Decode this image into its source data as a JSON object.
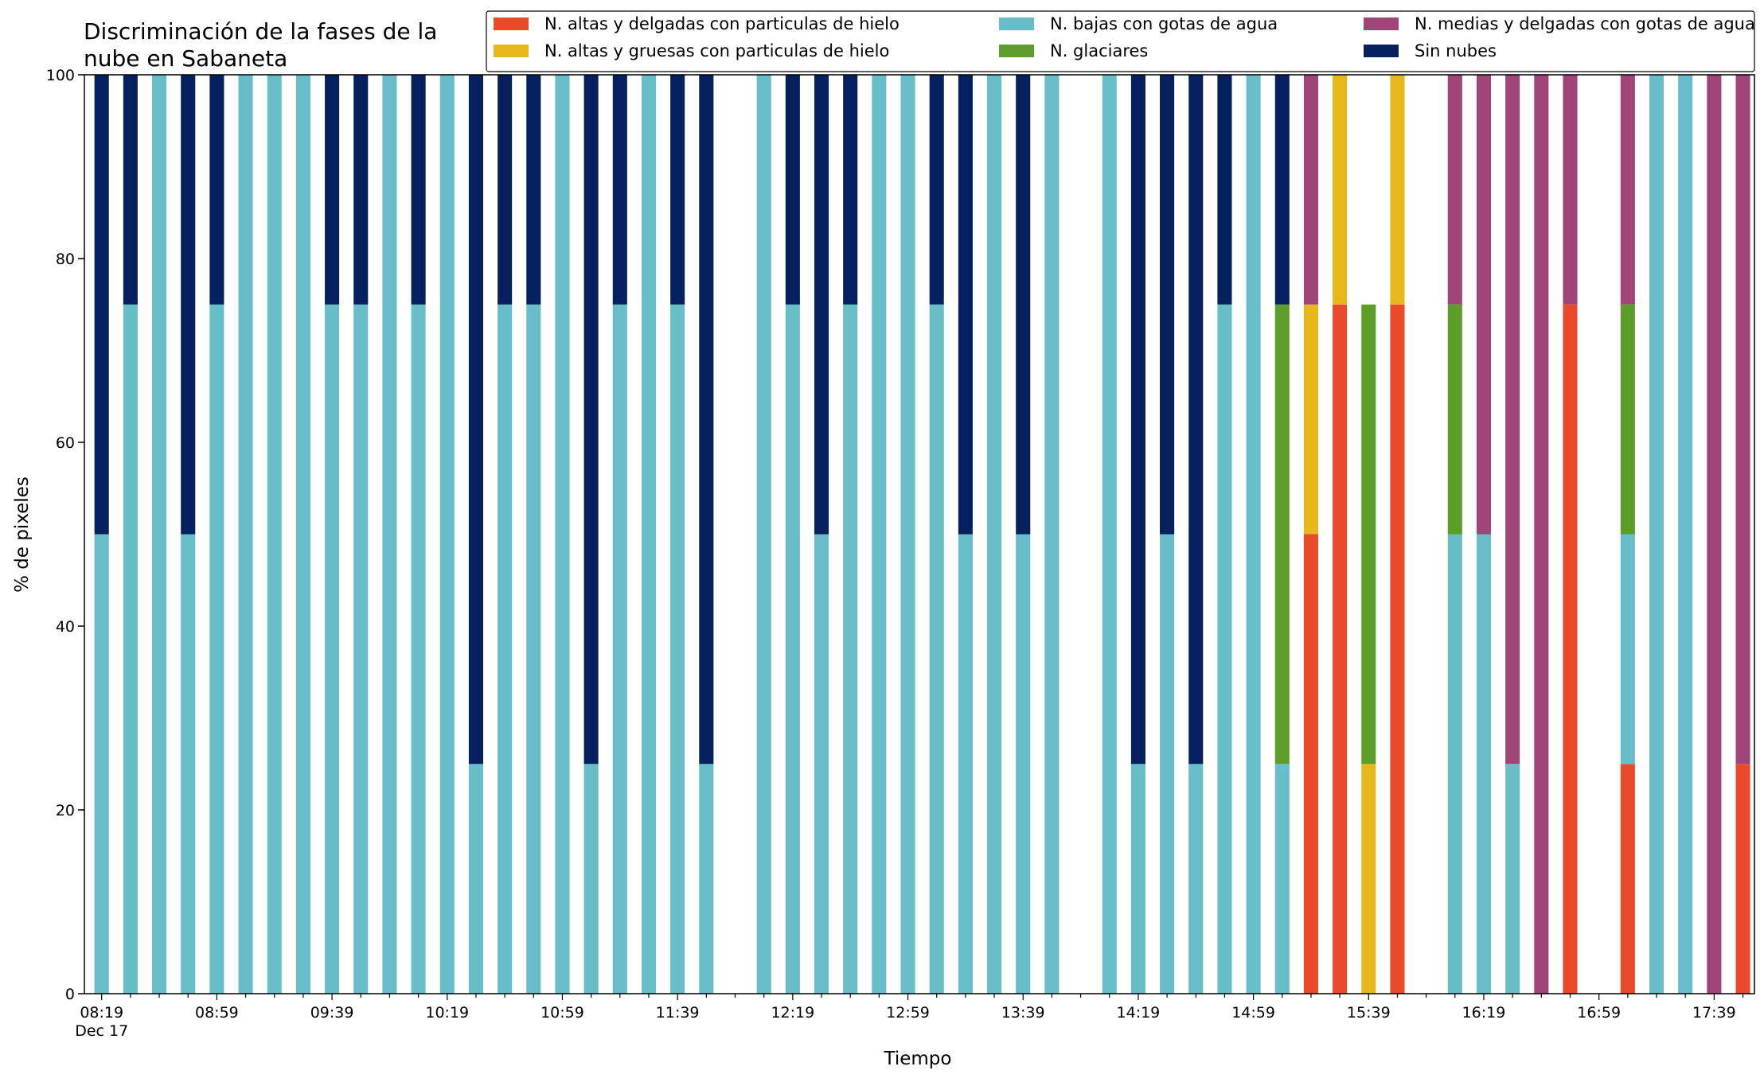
{
  "chart_data": {
    "type": "bar",
    "stacked": true,
    "title": [
      "Discriminación de la fases de la",
      "nube en Sabaneta"
    ],
    "xlabel": "Tiempo",
    "ylabel": "% de pixeles",
    "ylim": [
      0,
      100
    ],
    "yticks": [
      0,
      20,
      40,
      60,
      80,
      100
    ],
    "xlim": [
      "08:13",
      "17:53"
    ],
    "xtick_labels": [
      "08:19",
      "08:59",
      "09:39",
      "10:19",
      "10:59",
      "11:39",
      "12:19",
      "12:59",
      "13:39",
      "14:19",
      "14:59",
      "15:39",
      "16:19",
      "16:59",
      "17:39"
    ],
    "x_date_label": "Dec 17",
    "grid": false,
    "legend_position": "top-right",
    "legend_columns": 3,
    "categories": [
      "08:19",
      "08:29",
      "08:39",
      "08:49",
      "08:59",
      "09:09",
      "09:19",
      "09:29",
      "09:39",
      "09:49",
      "09:59",
      "10:09",
      "10:19",
      "10:29",
      "10:39",
      "10:49",
      "10:59",
      "11:09",
      "11:19",
      "11:29",
      "11:39",
      "11:49",
      "12:09",
      "12:19",
      "12:29",
      "12:39",
      "12:49",
      "12:59",
      "13:09",
      "13:19",
      "13:29",
      "13:39",
      "13:49",
      "14:09",
      "14:19",
      "14:29",
      "14:39",
      "14:49",
      "14:59",
      "15:09",
      "15:19",
      "15:29",
      "15:39",
      "15:49",
      "16:09",
      "16:19",
      "16:29",
      "16:39",
      "16:49",
      "17:09",
      "17:19",
      "17:29",
      "17:39",
      "17:49"
    ],
    "series": [
      {
        "name": "N. altas y delgadas con particulas de hielo",
        "color": "#e84a2a",
        "values": [
          0,
          0,
          0,
          0,
          0,
          0,
          0,
          0,
          0,
          0,
          0,
          0,
          0,
          0,
          0,
          0,
          0,
          0,
          0,
          0,
          0,
          0,
          0,
          0,
          0,
          0,
          0,
          0,
          0,
          0,
          0,
          0,
          0,
          0,
          0,
          0,
          0,
          0,
          0,
          0,
          50,
          75,
          0,
          75,
          0,
          0,
          0,
          0,
          75,
          25,
          0,
          0,
          0,
          25
        ]
      },
      {
        "name": "N. altas y gruesas con particulas de hielo",
        "color": "#e6b81c",
        "values": [
          0,
          0,
          0,
          0,
          0,
          0,
          0,
          0,
          0,
          0,
          0,
          0,
          0,
          0,
          0,
          0,
          0,
          0,
          0,
          0,
          0,
          0,
          0,
          0,
          0,
          0,
          0,
          0,
          0,
          0,
          0,
          0,
          0,
          0,
          0,
          0,
          0,
          0,
          0,
          0,
          25,
          25,
          25,
          25,
          0,
          0,
          0,
          0,
          0,
          0,
          0,
          0,
          0,
          0
        ]
      },
      {
        "name": "N. bajas con gotas de agua",
        "color": "#67bdc8",
        "values": [
          50,
          75,
          100,
          50,
          75,
          100,
          100,
          100,
          75,
          75,
          100,
          75,
          100,
          25,
          75,
          75,
          100,
          25,
          75,
          100,
          75,
          25,
          100,
          75,
          50,
          75,
          100,
          100,
          75,
          50,
          100,
          50,
          100,
          100,
          25,
          50,
          25,
          75,
          100,
          25,
          0,
          0,
          0,
          0,
          50,
          50,
          25,
          0,
          0,
          25,
          100,
          100,
          0,
          0
        ]
      },
      {
        "name": "N. glaciares",
        "color": "#5d9e2b",
        "values": [
          0,
          0,
          0,
          0,
          0,
          0,
          0,
          0,
          0,
          0,
          0,
          0,
          0,
          0,
          0,
          0,
          0,
          0,
          0,
          0,
          0,
          0,
          0,
          0,
          0,
          0,
          0,
          0,
          0,
          0,
          0,
          0,
          0,
          0,
          0,
          0,
          0,
          0,
          0,
          50,
          0,
          0,
          50,
          0,
          25,
          0,
          0,
          0,
          0,
          25,
          0,
          0,
          0,
          0
        ]
      },
      {
        "name": "N. medias y delgadas con gotas de agua",
        "color": "#9f4578",
        "values": [
          0,
          0,
          0,
          0,
          0,
          0,
          0,
          0,
          0,
          0,
          0,
          0,
          0,
          0,
          0,
          0,
          0,
          0,
          0,
          0,
          0,
          0,
          0,
          0,
          0,
          0,
          0,
          0,
          0,
          0,
          0,
          0,
          0,
          0,
          0,
          0,
          0,
          0,
          0,
          0,
          25,
          0,
          0,
          0,
          25,
          50,
          75,
          100,
          25,
          25,
          0,
          0,
          100,
          75
        ]
      },
      {
        "name": "Sin nubes",
        "color": "#04205e",
        "values": [
          50,
          25,
          0,
          50,
          25,
          0,
          0,
          0,
          25,
          25,
          0,
          25,
          0,
          75,
          25,
          25,
          0,
          75,
          25,
          0,
          25,
          75,
          0,
          25,
          50,
          25,
          0,
          0,
          25,
          50,
          0,
          50,
          0,
          0,
          75,
          50,
          75,
          25,
          0,
          25,
          0,
          0,
          0,
          0,
          0,
          0,
          0,
          0,
          0,
          0,
          0,
          0,
          0,
          0
        ]
      }
    ]
  }
}
